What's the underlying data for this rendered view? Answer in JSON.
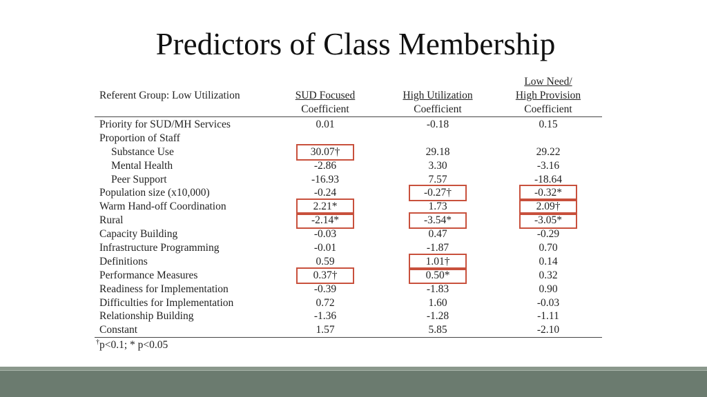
{
  "title": "Predictors of Class Membership",
  "table": {
    "referent": "Referent Group: Low Utilization",
    "columns": [
      {
        "name_lines": [
          "SUD Focused"
        ],
        "sub": "Coefficient"
      },
      {
        "name_lines": [
          "High Utilization"
        ],
        "sub": "Coefficient"
      },
      {
        "name_lines": [
          "Low Need/",
          "High Provision"
        ],
        "sub": "Coefficient"
      }
    ],
    "rows": [
      {
        "label": "Priority for SUD/MH Services",
        "indent": false,
        "values": [
          "0.01",
          "-0.18",
          "0.15"
        ],
        "highlight": [
          false,
          false,
          false
        ]
      },
      {
        "label": "Proportion of Staff",
        "indent": false,
        "values": [
          "",
          "",
          ""
        ],
        "highlight": [
          false,
          false,
          false
        ]
      },
      {
        "label": "Substance Use",
        "indent": true,
        "values": [
          "30.07†",
          "29.18",
          "29.22"
        ],
        "highlight": [
          true,
          false,
          false
        ]
      },
      {
        "label": "Mental Health",
        "indent": true,
        "values": [
          "-2.86",
          "3.30",
          "-3.16"
        ],
        "highlight": [
          false,
          false,
          false
        ]
      },
      {
        "label": "Peer Support",
        "indent": true,
        "values": [
          "-16.93",
          "7.57",
          "-18.64"
        ],
        "highlight": [
          false,
          false,
          false
        ]
      },
      {
        "label": "Population size (x10,000)",
        "indent": false,
        "values": [
          "-0.24",
          "-0.27†",
          "-0.32*"
        ],
        "highlight": [
          false,
          true,
          true
        ]
      },
      {
        "label": "Warm Hand-off Coordination",
        "indent": false,
        "values": [
          "2.21*",
          "1.73",
          "2.09†"
        ],
        "highlight": [
          true,
          false,
          true
        ]
      },
      {
        "label": "Rural",
        "indent": false,
        "values": [
          "-2.14*",
          "-3.54*",
          "-3.05*"
        ],
        "highlight": [
          true,
          true,
          true
        ]
      },
      {
        "label": "Capacity Building",
        "indent": false,
        "values": [
          "-0.03",
          "0.47",
          "-0.29"
        ],
        "highlight": [
          false,
          false,
          false
        ]
      },
      {
        "label": "Infrastructure Programming",
        "indent": false,
        "values": [
          "-0.01",
          "-1.87",
          "0.70"
        ],
        "highlight": [
          false,
          false,
          false
        ]
      },
      {
        "label": "Definitions",
        "indent": false,
        "values": [
          "0.59",
          "1.01†",
          "0.14"
        ],
        "highlight": [
          false,
          true,
          false
        ]
      },
      {
        "label": "Performance Measures",
        "indent": false,
        "values": [
          "0.37†",
          "0.50*",
          "0.32"
        ],
        "highlight": [
          true,
          true,
          false
        ]
      },
      {
        "label": "Readiness for Implementation",
        "indent": false,
        "values": [
          "-0.39",
          "-1.83",
          "0.90"
        ],
        "highlight": [
          false,
          false,
          false
        ]
      },
      {
        "label": "Difficulties for Implementation",
        "indent": false,
        "values": [
          "0.72",
          "1.60",
          "-0.03"
        ],
        "highlight": [
          false,
          false,
          false
        ]
      },
      {
        "label": "Relationship Building",
        "indent": false,
        "values": [
          "-1.36",
          "-1.28",
          "-1.11"
        ],
        "highlight": [
          false,
          false,
          false
        ]
      },
      {
        "label": "Constant",
        "indent": false,
        "values": [
          "1.57",
          "5.85",
          "-2.10"
        ],
        "highlight": [
          false,
          false,
          false
        ]
      }
    ],
    "footnote_mark": "†",
    "footnote": "p<0.1; * p<0.05"
  },
  "colors": {
    "highlight_box": "#c8503c",
    "footer_band": "#6b7b6f"
  }
}
